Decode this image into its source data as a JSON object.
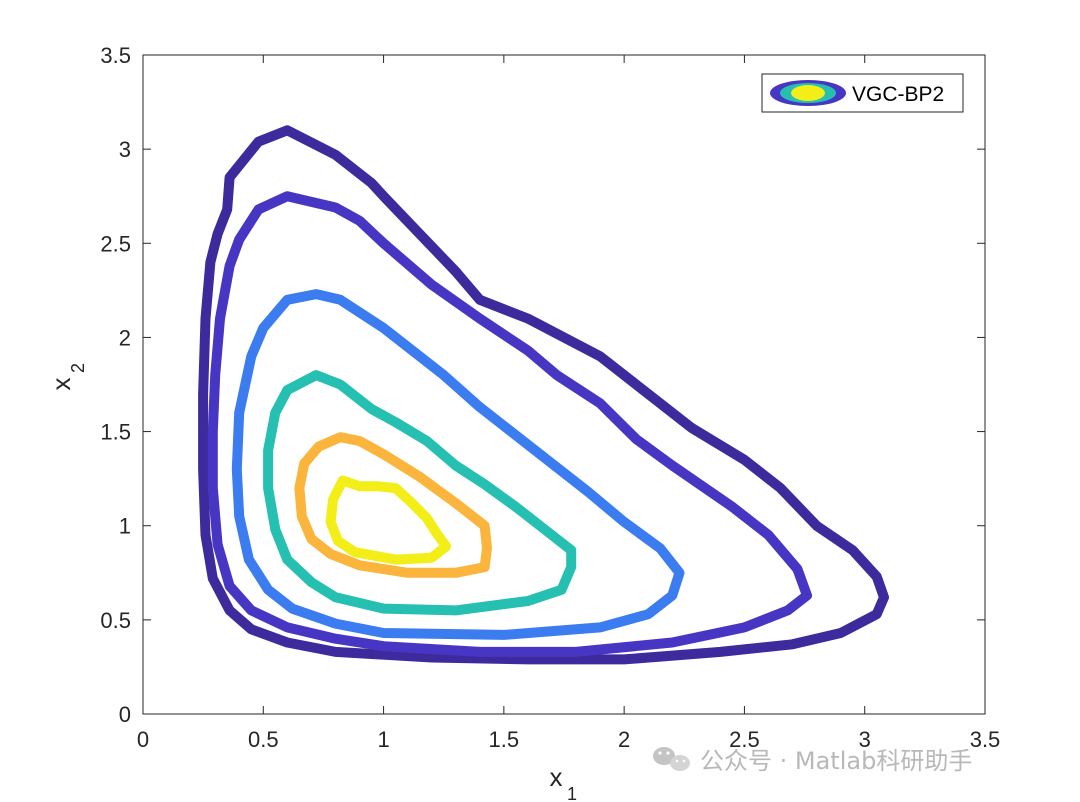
{
  "chart_data": {
    "type": "contour",
    "xlabel": "x",
    "xlabel_subscript": "1",
    "ylabel": "x",
    "ylabel_subscript": "2",
    "xlim": [
      0,
      3.5
    ],
    "ylim": [
      0,
      3.5
    ],
    "x_ticks": [
      "0",
      "0.5",
      "1",
      "1.5",
      "2",
      "2.5",
      "3",
      "3.5"
    ],
    "y_ticks": [
      "0",
      "0.5",
      "1",
      "1.5",
      "2",
      "2.5",
      "3",
      "3.5"
    ],
    "grid": false,
    "legend": {
      "entries": [
        "VGC-BP2"
      ],
      "placement": "top-right"
    },
    "levels": [
      {
        "color": "#3d2a9c",
        "points": [
          [
            0.6,
            3.1
          ],
          [
            0.48,
            3.04
          ],
          [
            0.36,
            2.85
          ],
          [
            0.35,
            2.68
          ],
          [
            0.31,
            2.55
          ],
          [
            0.28,
            2.4
          ],
          [
            0.26,
            2.1
          ],
          [
            0.25,
            1.7
          ],
          [
            0.25,
            1.3
          ],
          [
            0.26,
            0.95
          ],
          [
            0.29,
            0.72
          ],
          [
            0.36,
            0.55
          ],
          [
            0.45,
            0.45
          ],
          [
            0.6,
            0.38
          ],
          [
            0.8,
            0.33
          ],
          [
            1.2,
            0.3
          ],
          [
            1.6,
            0.29
          ],
          [
            2.0,
            0.29
          ],
          [
            2.4,
            0.33
          ],
          [
            2.7,
            0.37
          ],
          [
            2.9,
            0.43
          ],
          [
            3.05,
            0.53
          ],
          [
            3.08,
            0.62
          ],
          [
            3.05,
            0.73
          ],
          [
            2.95,
            0.87
          ],
          [
            2.8,
            1.0
          ],
          [
            2.65,
            1.2
          ],
          [
            2.5,
            1.35
          ],
          [
            2.28,
            1.52
          ],
          [
            2.12,
            1.68
          ],
          [
            2.0,
            1.8
          ],
          [
            1.9,
            1.9
          ],
          [
            1.75,
            2.0
          ],
          [
            1.6,
            2.1
          ],
          [
            1.4,
            2.2
          ],
          [
            1.3,
            2.35
          ],
          [
            1.15,
            2.55
          ],
          [
            1.0,
            2.75
          ],
          [
            0.95,
            2.82
          ],
          [
            0.8,
            2.97
          ]
        ]
      },
      {
        "color": "#4735c4",
        "points": [
          [
            0.6,
            2.75
          ],
          [
            0.48,
            2.68
          ],
          [
            0.4,
            2.52
          ],
          [
            0.36,
            2.38
          ],
          [
            0.32,
            2.1
          ],
          [
            0.3,
            1.8
          ],
          [
            0.29,
            1.5
          ],
          [
            0.29,
            1.2
          ],
          [
            0.31,
            0.9
          ],
          [
            0.36,
            0.68
          ],
          [
            0.45,
            0.55
          ],
          [
            0.6,
            0.46
          ],
          [
            0.8,
            0.4
          ],
          [
            1.0,
            0.36
          ],
          [
            1.4,
            0.33
          ],
          [
            1.8,
            0.33
          ],
          [
            2.2,
            0.38
          ],
          [
            2.5,
            0.46
          ],
          [
            2.68,
            0.55
          ],
          [
            2.76,
            0.63
          ],
          [
            2.72,
            0.77
          ],
          [
            2.6,
            0.95
          ],
          [
            2.45,
            1.1
          ],
          [
            2.2,
            1.32
          ],
          [
            2.05,
            1.46
          ],
          [
            1.9,
            1.65
          ],
          [
            1.72,
            1.8
          ],
          [
            1.6,
            1.93
          ],
          [
            1.4,
            2.1
          ],
          [
            1.2,
            2.28
          ],
          [
            1.0,
            2.5
          ],
          [
            0.9,
            2.62
          ],
          [
            0.8,
            2.69
          ]
        ]
      },
      {
        "color": "#3b7cf0",
        "points": [
          [
            0.72,
            2.23
          ],
          [
            0.6,
            2.2
          ],
          [
            0.5,
            2.05
          ],
          [
            0.45,
            1.9
          ],
          [
            0.4,
            1.6
          ],
          [
            0.39,
            1.3
          ],
          [
            0.4,
            1.05
          ],
          [
            0.44,
            0.82
          ],
          [
            0.52,
            0.66
          ],
          [
            0.62,
            0.56
          ],
          [
            0.8,
            0.48
          ],
          [
            1.0,
            0.43
          ],
          [
            1.5,
            0.42
          ],
          [
            1.9,
            0.46
          ],
          [
            2.1,
            0.53
          ],
          [
            2.2,
            0.63
          ],
          [
            2.23,
            0.75
          ],
          [
            2.15,
            0.88
          ],
          [
            2.0,
            1.02
          ],
          [
            1.85,
            1.18
          ],
          [
            1.7,
            1.33
          ],
          [
            1.55,
            1.48
          ],
          [
            1.4,
            1.63
          ],
          [
            1.25,
            1.8
          ],
          [
            1.1,
            1.95
          ],
          [
            1.0,
            2.05
          ],
          [
            0.82,
            2.2
          ]
        ]
      },
      {
        "color": "#26c0b2",
        "points": [
          [
            0.72,
            1.8
          ],
          [
            0.6,
            1.72
          ],
          [
            0.55,
            1.6
          ],
          [
            0.52,
            1.4
          ],
          [
            0.52,
            1.2
          ],
          [
            0.55,
            0.98
          ],
          [
            0.6,
            0.82
          ],
          [
            0.7,
            0.7
          ],
          [
            0.8,
            0.62
          ],
          [
            1.0,
            0.56
          ],
          [
            1.3,
            0.55
          ],
          [
            1.6,
            0.6
          ],
          [
            1.74,
            0.66
          ],
          [
            1.78,
            0.78
          ],
          [
            1.78,
            0.87
          ],
          [
            1.67,
            0.98
          ],
          [
            1.55,
            1.1
          ],
          [
            1.42,
            1.22
          ],
          [
            1.3,
            1.32
          ],
          [
            1.18,
            1.45
          ],
          [
            1.05,
            1.55
          ],
          [
            0.95,
            1.62
          ],
          [
            0.82,
            1.75
          ]
        ]
      },
      {
        "color": "#fbb43c",
        "points": [
          [
            0.82,
            1.47
          ],
          [
            0.73,
            1.42
          ],
          [
            0.67,
            1.33
          ],
          [
            0.65,
            1.2
          ],
          [
            0.66,
            1.05
          ],
          [
            0.7,
            0.93
          ],
          [
            0.78,
            0.85
          ],
          [
            0.9,
            0.79
          ],
          [
            1.1,
            0.75
          ],
          [
            1.3,
            0.75
          ],
          [
            1.42,
            0.78
          ],
          [
            1.43,
            0.88
          ],
          [
            1.42,
            1.0
          ],
          [
            1.3,
            1.12
          ],
          [
            1.15,
            1.26
          ],
          [
            1.0,
            1.38
          ],
          [
            0.9,
            1.45
          ]
        ]
      },
      {
        "color": "#f3ee18",
        "points": [
          [
            0.83,
            1.24
          ],
          [
            0.79,
            1.14
          ],
          [
            0.78,
            1.02
          ],
          [
            0.81,
            0.92
          ],
          [
            0.88,
            0.86
          ],
          [
            1.05,
            0.82
          ],
          [
            1.2,
            0.83
          ],
          [
            1.26,
            0.89
          ],
          [
            1.22,
            0.96
          ],
          [
            1.18,
            1.04
          ],
          [
            1.11,
            1.13
          ],
          [
            1.05,
            1.2
          ],
          [
            0.97,
            1.21
          ],
          [
            0.9,
            1.21
          ]
        ]
      }
    ]
  },
  "watermark": {
    "text": "公众号 · Matlab科研助手",
    "icon": "wechat-icon"
  }
}
